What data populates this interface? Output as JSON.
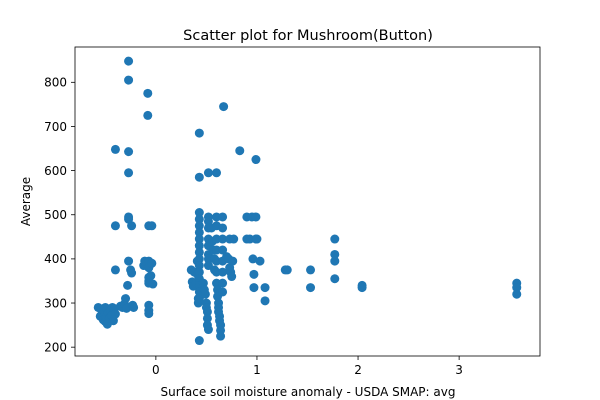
{
  "chart_data": {
    "type": "scatter",
    "title": "Scatter plot for Mushroom(Button)",
    "xlabel": "Surface soil moisture anomaly  - USDA SMAP: avg",
    "ylabel": "Average",
    "xlim": [
      -0.8,
      3.8
    ],
    "ylim": [
      180,
      880
    ],
    "xticks": [
      0,
      1,
      2,
      3
    ],
    "xtick_labels": [
      "0",
      "1",
      "2",
      "3"
    ],
    "yticks": [
      200,
      300,
      400,
      500,
      600,
      700,
      800
    ],
    "ytick_labels": [
      "200",
      "300",
      "400",
      "500",
      "600",
      "700",
      "800"
    ],
    "grid": false,
    "marker_color": "#1f77b4",
    "series": [
      {
        "points": [
          [
            -0.57,
            290
          ],
          [
            -0.55,
            270
          ],
          [
            -0.54,
            285
          ],
          [
            -0.53,
            275
          ],
          [
            -0.52,
            262
          ],
          [
            -0.51,
            280
          ],
          [
            -0.5,
            258
          ],
          [
            -0.5,
            290
          ],
          [
            -0.49,
            268
          ],
          [
            -0.48,
            252
          ],
          [
            -0.47,
            278
          ],
          [
            -0.46,
            265
          ],
          [
            -0.45,
            283
          ],
          [
            -0.44,
            272
          ],
          [
            -0.43,
            290
          ],
          [
            -0.42,
            260
          ],
          [
            -0.41,
            287
          ],
          [
            -0.4,
            275
          ],
          [
            -0.4,
            648
          ],
          [
            -0.4,
            375
          ],
          [
            -0.4,
            475
          ],
          [
            -0.35,
            293
          ],
          [
            -0.33,
            290
          ],
          [
            -0.31,
            298
          ],
          [
            -0.3,
            310
          ],
          [
            -0.29,
            288
          ],
          [
            -0.28,
            340
          ],
          [
            -0.27,
            395
          ],
          [
            -0.27,
            495
          ],
          [
            -0.27,
            490
          ],
          [
            -0.27,
            848
          ],
          [
            -0.27,
            805
          ],
          [
            -0.27,
            643
          ],
          [
            -0.27,
            595
          ],
          [
            -0.24,
            475
          ],
          [
            -0.24,
            368
          ],
          [
            -0.25,
            375
          ],
          [
            -0.23,
            295
          ],
          [
            -0.22,
            290
          ],
          [
            -0.12,
            385
          ],
          [
            -0.11,
            395
          ],
          [
            -0.08,
            775
          ],
          [
            -0.08,
            725
          ],
          [
            -0.07,
            475
          ],
          [
            -0.07,
            395
          ],
          [
            -0.07,
            380
          ],
          [
            -0.07,
            358
          ],
          [
            -0.07,
            350
          ],
          [
            -0.07,
            345
          ],
          [
            -0.07,
            295
          ],
          [
            -0.07,
            283
          ],
          [
            -0.07,
            276
          ],
          [
            -0.05,
            362
          ],
          [
            -0.04,
            475
          ],
          [
            -0.04,
            390
          ],
          [
            -0.03,
            343
          ],
          [
            0.35,
            375
          ],
          [
            0.36,
            348
          ],
          [
            0.37,
            338
          ],
          [
            0.38,
            370
          ],
          [
            0.4,
            345
          ],
          [
            0.41,
            395
          ],
          [
            0.41,
            365
          ],
          [
            0.42,
            310
          ],
          [
            0.42,
            300
          ],
          [
            0.43,
            685
          ],
          [
            0.43,
            585
          ],
          [
            0.43,
            505
          ],
          [
            0.43,
            490
          ],
          [
            0.43,
            475
          ],
          [
            0.43,
            460
          ],
          [
            0.43,
            445
          ],
          [
            0.43,
            430
          ],
          [
            0.43,
            415
          ],
          [
            0.43,
            400
          ],
          [
            0.43,
            385
          ],
          [
            0.43,
            370
          ],
          [
            0.43,
            355
          ],
          [
            0.43,
            340
          ],
          [
            0.43,
            325
          ],
          [
            0.43,
            310
          ],
          [
            0.43,
            215
          ],
          [
            0.47,
            345
          ],
          [
            0.48,
            330
          ],
          [
            0.49,
            320
          ],
          [
            0.5,
            300
          ],
          [
            0.5,
            290
          ],
          [
            0.51,
            280
          ],
          [
            0.51,
            265
          ],
          [
            0.51,
            250
          ],
          [
            0.52,
            240
          ],
          [
            0.52,
            595
          ],
          [
            0.52,
            495
          ],
          [
            0.52,
            485
          ],
          [
            0.52,
            470
          ],
          [
            0.52,
            445
          ],
          [
            0.52,
            430
          ],
          [
            0.52,
            410
          ],
          [
            0.52,
            400
          ],
          [
            0.52,
            385
          ],
          [
            0.55,
            470
          ],
          [
            0.56,
            440
          ],
          [
            0.57,
            420
          ],
          [
            0.58,
            400
          ],
          [
            0.58,
            375
          ],
          [
            0.6,
            595
          ],
          [
            0.6,
            495
          ],
          [
            0.6,
            475
          ],
          [
            0.6,
            445
          ],
          [
            0.6,
            420
          ],
          [
            0.6,
            395
          ],
          [
            0.6,
            370
          ],
          [
            0.6,
            345
          ],
          [
            0.61,
            330
          ],
          [
            0.61,
            315
          ],
          [
            0.62,
            300
          ],
          [
            0.62,
            290
          ],
          [
            0.62,
            280
          ],
          [
            0.63,
            270
          ],
          [
            0.63,
            260
          ],
          [
            0.64,
            250
          ],
          [
            0.64,
            238
          ],
          [
            0.64,
            225
          ],
          [
            0.66,
            495
          ],
          [
            0.66,
            470
          ],
          [
            0.66,
            445
          ],
          [
            0.66,
            420
          ],
          [
            0.66,
            395
          ],
          [
            0.66,
            370
          ],
          [
            0.66,
            345
          ],
          [
            0.66,
            325
          ],
          [
            0.67,
            745
          ],
          [
            0.7,
            405
          ],
          [
            0.72,
            400
          ],
          [
            0.73,
            445
          ],
          [
            0.73,
            380
          ],
          [
            0.74,
            370
          ],
          [
            0.75,
            360
          ],
          [
            0.76,
            395
          ],
          [
            0.77,
            445
          ],
          [
            0.83,
            645
          ],
          [
            0.9,
            495
          ],
          [
            0.9,
            445
          ],
          [
            0.93,
            445
          ],
          [
            0.95,
            495
          ],
          [
            0.96,
            400
          ],
          [
            0.97,
            365
          ],
          [
            0.97,
            335
          ],
          [
            0.99,
            625
          ],
          [
            0.99,
            495
          ],
          [
            0.99,
            445
          ],
          [
            1.0,
            445
          ],
          [
            1.03,
            395
          ],
          [
            1.08,
            335
          ],
          [
            1.08,
            305
          ],
          [
            1.28,
            375
          ],
          [
            1.3,
            375
          ],
          [
            1.53,
            375
          ],
          [
            1.53,
            335
          ],
          [
            1.77,
            445
          ],
          [
            1.77,
            410
          ],
          [
            1.77,
            395
          ],
          [
            1.77,
            355
          ],
          [
            2.04,
            340
          ],
          [
            2.04,
            335
          ],
          [
            3.57,
            345
          ],
          [
            3.57,
            335
          ],
          [
            3.57,
            320
          ]
        ]
      }
    ]
  }
}
